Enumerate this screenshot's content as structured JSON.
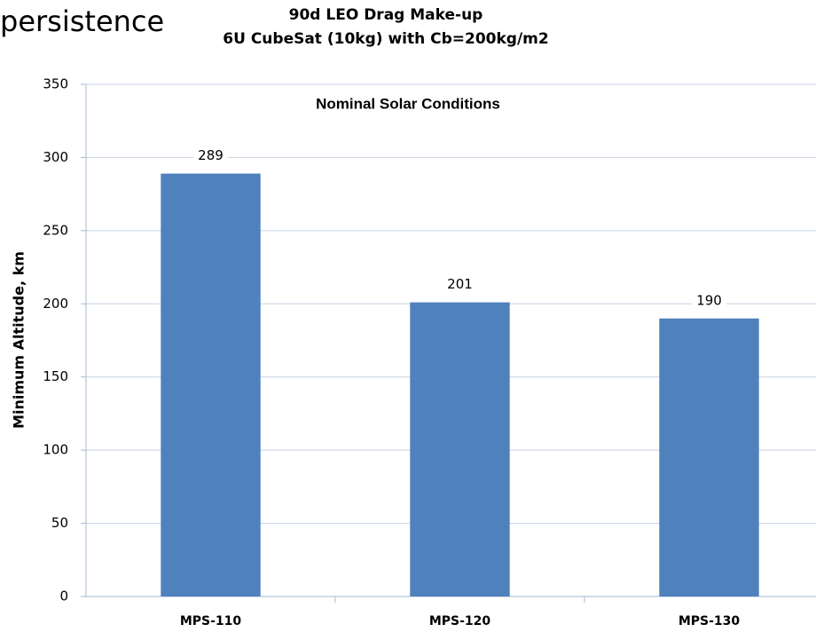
{
  "header": "persistence",
  "chart_data": {
    "type": "bar",
    "title": "90d LEO Drag Make-up",
    "subtitle": "6U CubeSat (10kg) with Cb=200kg/m2",
    "annotation": "Nominal Solar Conditions",
    "y_label": "Minimum Altitude, km",
    "categories": [
      "MPS-110",
      "MPS-120",
      "MPS-130"
    ],
    "values": [
      289,
      201,
      190
    ],
    "color": "#4f81bd",
    "ylim": [
      0,
      350
    ],
    "yticks": [
      0,
      50,
      100,
      150,
      200,
      250,
      300,
      350
    ],
    "grid": true
  }
}
